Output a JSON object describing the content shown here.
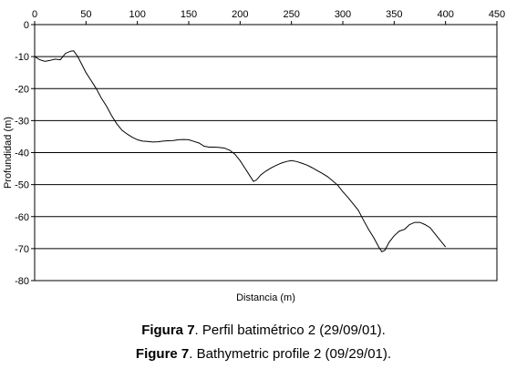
{
  "chart_data": {
    "type": "line",
    "xlabel": "Distancia (m)",
    "ylabel": "Profundidad (m)",
    "xlim": [
      0,
      450
    ],
    "ylim": [
      -80,
      0
    ],
    "xticks": [
      0,
      50,
      100,
      150,
      200,
      250,
      300,
      350,
      400,
      450
    ],
    "yticks": [
      0,
      -10,
      -20,
      -30,
      -40,
      -50,
      -60,
      -70,
      -80
    ],
    "grid": "horizontal",
    "x_axis_position": "top",
    "line_color": "#000000",
    "series": [
      {
        "x": [
          0,
          5,
          10,
          15,
          20,
          25,
          30,
          35,
          38,
          42,
          46,
          50,
          55,
          60,
          65,
          70,
          75,
          80,
          85,
          90,
          95,
          100,
          105,
          110,
          115,
          120,
          125,
          130,
          135,
          140,
          145,
          150,
          155,
          160,
          165,
          170,
          175,
          180,
          185,
          190,
          195,
          200,
          205,
          210,
          213,
          216,
          220,
          225,
          230,
          235,
          240,
          245,
          250,
          255,
          260,
          265,
          270,
          275,
          280,
          285,
          290,
          295,
          300,
          305,
          310,
          315,
          320,
          325,
          330,
          335,
          338,
          341,
          345,
          350,
          355,
          360,
          365,
          370,
          375,
          380,
          385,
          390,
          395,
          400
        ],
        "y": [
          -10,
          -11,
          -11.5,
          -11.2,
          -10.8,
          -11,
          -9,
          -8.3,
          -8.2,
          -10,
          -12.5,
          -15,
          -17.5,
          -20,
          -23,
          -25.5,
          -28.5,
          -31,
          -33,
          -34.2,
          -35.2,
          -36,
          -36.4,
          -36.5,
          -36.7,
          -36.6,
          -36.4,
          -36.3,
          -36.2,
          -36,
          -35.9,
          -36,
          -36.5,
          -37,
          -38,
          -38.3,
          -38.3,
          -38.4,
          -38.6,
          -39.3,
          -40.5,
          -42.5,
          -45,
          -47.5,
          -49,
          -48.5,
          -47,
          -45.8,
          -44.8,
          -44,
          -43.3,
          -42.8,
          -42.5,
          -42.8,
          -43.3,
          -43.9,
          -44.7,
          -45.6,
          -46.5,
          -47.5,
          -48.8,
          -50.2,
          -52.2,
          -54,
          -56,
          -58,
          -61,
          -64,
          -66.5,
          -69.5,
          -71,
          -70.5,
          -68,
          -66,
          -64.5,
          -64,
          -62.5,
          -61.8,
          -61.8,
          -62.5,
          -63.5,
          -65.5,
          -67.5,
          -69.5
        ]
      }
    ]
  },
  "captions": {
    "es_bold": "Figura 7",
    "es_rest": ". Perfil batimétrico 2 (29/09/01).",
    "en_bold": "Figure 7",
    "en_rest": ". Bathymetric profile 2 (09/29/01)."
  }
}
